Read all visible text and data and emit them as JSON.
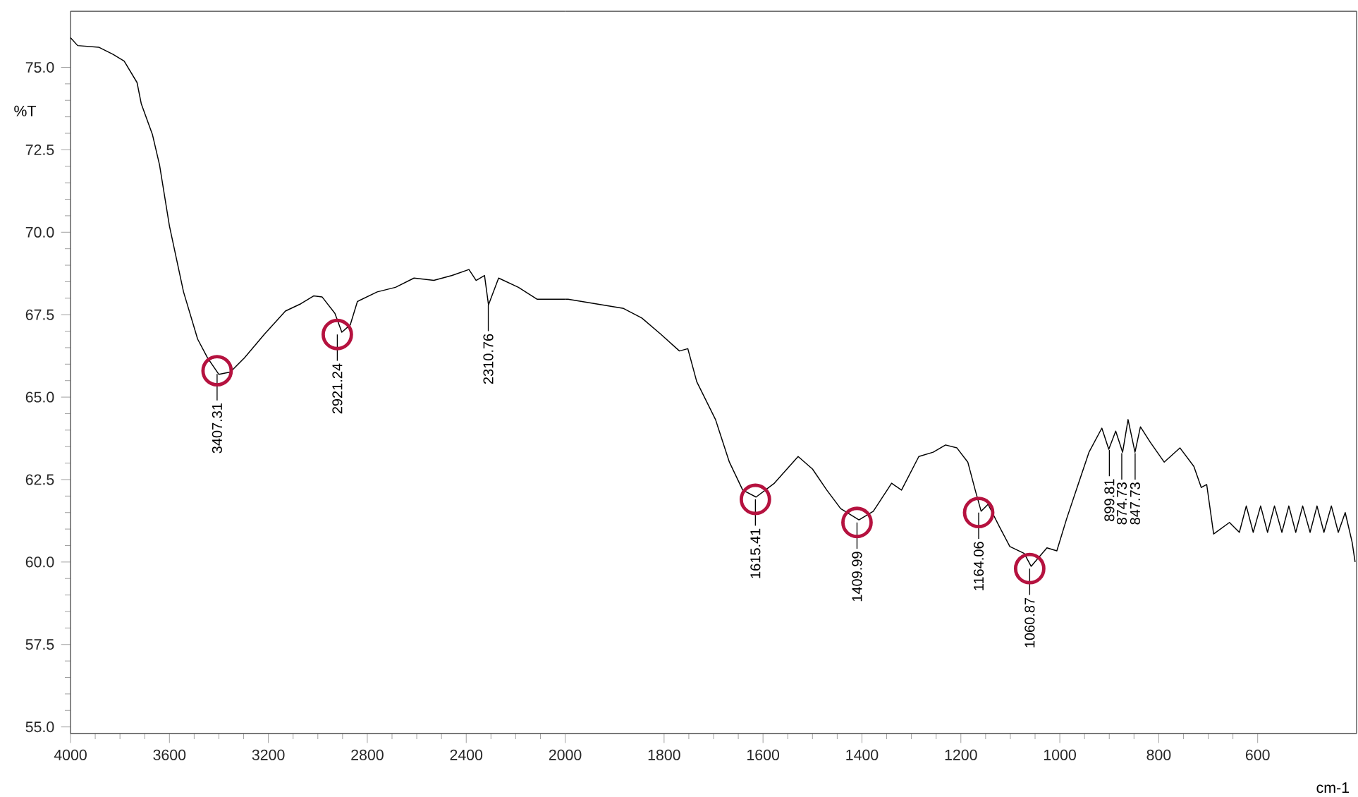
{
  "chart_data": [
    {
      "type": "line",
      "ylabel": "%T",
      "xlim": [
        4000,
        2000
      ],
      "xticks": [
        4000,
        3600,
        3200,
        2800,
        2400,
        2000
      ],
      "ylim": [
        54.8,
        76.7
      ],
      "yticks": [
        {
          "value": 55,
          "label": "55.0"
        },
        {
          "value": 57.5,
          "label": "57.5"
        },
        {
          "value": 60,
          "label": "60.0"
        },
        {
          "value": 62.5,
          "label": "62.5"
        },
        {
          "value": 65,
          "label": "65.0"
        },
        {
          "value": 67.5,
          "label": "67.5"
        },
        {
          "value": 70,
          "label": "70.0"
        },
        {
          "value": 72.5,
          "label": "72.5"
        },
        {
          "value": 75,
          "label": "75.0"
        }
      ],
      "series": [
        {
          "color": "#000000",
          "x": [
            4000,
            3971,
            3886,
            3829,
            3783,
            3731,
            3714,
            3669,
            3640,
            3600,
            3543,
            3486,
            3446,
            3400,
            3354,
            3297,
            3217,
            3131,
            3069,
            3017,
            2983,
            2931,
            2903,
            2869,
            2840,
            2760,
            2686,
            2611,
            2531,
            2457,
            2389,
            2360,
            2326,
            2310,
            2269,
            2189,
            2114,
            2000
          ],
          "values": [
            75.9,
            75.66,
            75.61,
            75.4,
            75.19,
            74.54,
            73.9,
            72.97,
            72.04,
            70.19,
            68.19,
            66.76,
            66.19,
            65.69,
            65.76,
            66.19,
            66.9,
            67.61,
            67.83,
            68.07,
            68.04,
            67.54,
            66.97,
            67.19,
            67.9,
            68.19,
            68.33,
            68.61,
            68.54,
            68.69,
            68.87,
            68.54,
            68.69,
            67.8,
            68.61,
            68.33,
            67.97,
            67.97
          ]
        },
        {
          "type": "scatter",
          "marker": "circle",
          "color": "#b5123f",
          "x": [
            3407.31,
            2921.24
          ],
          "values": [
            65.8,
            66.9
          ]
        }
      ],
      "annotations": [
        {
          "text": "3407.31",
          "x": 3407.31,
          "y": 65.7
        },
        {
          "text": "2921.24",
          "x": 2921.24,
          "y": 66.9
        },
        {
          "text": "2310.76",
          "x": 2310.76,
          "y": 67.8
        }
      ]
    },
    {
      "type": "line",
      "xlabel": "cm-1",
      "tick_labels": "x",
      "xlim": [
        2000,
        400
      ],
      "xticks": [
        1800,
        1600,
        1400,
        1200,
        1000,
        800,
        600
      ],
      "ylim": [
        54.8,
        76.7
      ],
      "series": [
        {
          "color": "#000000",
          "x": [
            2000,
            1994,
            1938,
            1882,
            1845,
            1806,
            1769,
            1752,
            1734,
            1696,
            1668,
            1641,
            1614,
            1577,
            1529,
            1500,
            1471,
            1443,
            1406,
            1377,
            1340,
            1320,
            1285,
            1256,
            1231,
            1208,
            1186,
            1171,
            1159,
            1145,
            1122,
            1101,
            1072,
            1058,
            1026,
            1006,
            986,
            963,
            941,
            915,
            901,
            887,
            873,
            862,
            848,
            837,
            817,
            789,
            757,
            729,
            714,
            703,
            689,
            657,
            637,
            623,
            609,
            594,
            580,
            566,
            551,
            537,
            523,
            509,
            494,
            480,
            466,
            451,
            437,
            423,
            409,
            403
          ],
          "values": [
            67.97,
            67.97,
            67.83,
            67.69,
            67.4,
            66.9,
            66.4,
            66.47,
            65.47,
            64.32,
            63.03,
            62.18,
            61.97,
            62.39,
            63.2,
            62.82,
            62.18,
            61.62,
            61.28,
            61.54,
            62.39,
            62.18,
            63.2,
            63.33,
            63.55,
            63.46,
            63.03,
            62.18,
            61.54,
            61.75,
            61.07,
            60.47,
            60.26,
            59.87,
            60.43,
            60.34,
            61.32,
            62.35,
            63.33,
            64.06,
            63.42,
            63.97,
            63.33,
            64.32,
            63.33,
            64.1,
            63.63,
            63.03,
            63.46,
            62.9,
            62.26,
            62.35,
            60.85,
            61.2,
            60.9,
            61.7,
            60.9,
            61.7,
            60.9,
            61.7,
            60.9,
            61.7,
            60.9,
            61.7,
            60.9,
            61.7,
            60.9,
            61.7,
            60.9,
            61.5,
            60.6,
            60.0
          ]
        },
        {
          "type": "scatter",
          "marker": "circle",
          "color": "#b5123f",
          "x": [
            1615.41,
            1409.99,
            1164.06,
            1060.87
          ],
          "values": [
            61.9,
            61.2,
            61.5,
            59.8
          ]
        }
      ],
      "annotations": [
        {
          "text": "1615.41",
          "x": 1615.41,
          "y": 61.9
        },
        {
          "text": "1409.99",
          "x": 1409.99,
          "y": 61.2
        },
        {
          "text": "1164.06",
          "x": 1164.06,
          "y": 61.5
        },
        {
          "text": "1060.87",
          "x": 1060.87,
          "y": 59.8
        },
        {
          "text": "899.81",
          "x": 899.81,
          "y": 63.4
        },
        {
          "text": "874.73",
          "x": 874.73,
          "y": 63.3
        },
        {
          "text": "847.73",
          "x": 847.73,
          "y": 63.3
        }
      ]
    }
  ]
}
